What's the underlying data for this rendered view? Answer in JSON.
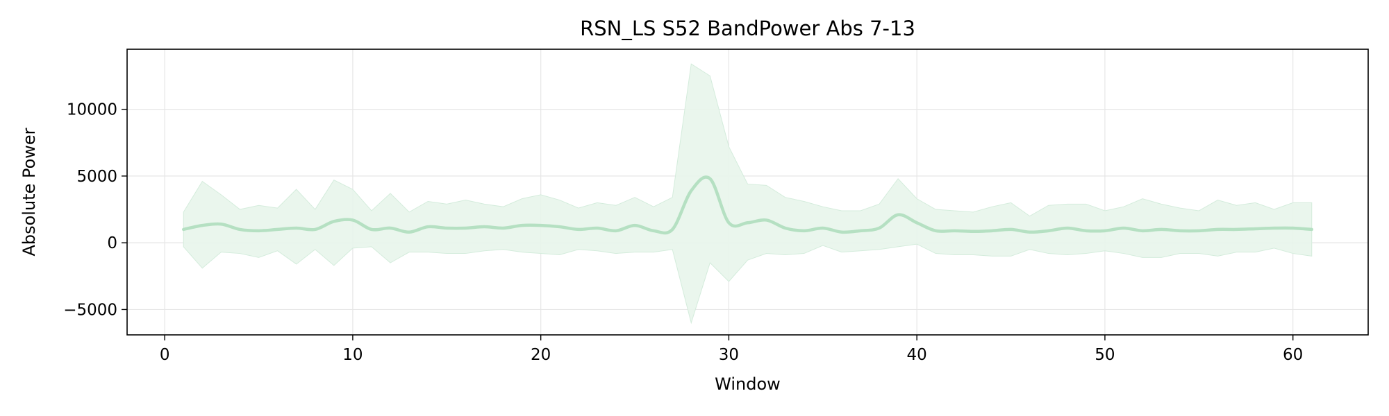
{
  "chart_data": {
    "type": "line",
    "title": "RSN_LS S52 BandPower Abs 7-13",
    "xlabel": "Window",
    "ylabel": "Absolute Power",
    "xlim": [
      -2,
      64
    ],
    "ylim": [
      -6900,
      14500
    ],
    "x_ticks": [
      0,
      10,
      20,
      30,
      40,
      50,
      60
    ],
    "x_tick_labels": [
      "0",
      "10",
      "20",
      "30",
      "40",
      "50",
      "60"
    ],
    "y_ticks": [
      -5000,
      0,
      5000,
      10000
    ],
    "y_tick_labels": [
      "−5000",
      "0",
      "5000",
      "10000"
    ],
    "grid": true,
    "legend": "none",
    "colors": {
      "line": "#b5e0c2",
      "band": "#e8f5eb",
      "band_edge": "#d4ecdc",
      "grid": "#e6e6e6"
    },
    "series": [
      {
        "x": [
          1,
          2,
          3,
          4,
          5,
          6,
          7,
          8,
          9,
          10,
          11,
          12,
          13,
          14,
          15,
          16,
          17,
          18,
          19,
          20,
          21,
          22,
          23,
          24,
          25,
          26,
          27,
          28,
          29,
          30,
          31,
          32,
          33,
          34,
          35,
          36,
          37,
          38,
          39,
          40,
          41,
          42,
          43,
          44,
          45,
          46,
          47,
          48,
          49,
          50,
          51,
          52,
          53,
          54,
          55,
          56,
          57,
          58,
          59,
          60,
          61
        ],
        "mean": [
          1000,
          1300,
          1400,
          1000,
          900,
          1000,
          1100,
          1000,
          1600,
          1700,
          1000,
          1100,
          800,
          1200,
          1100,
          1100,
          1200,
          1100,
          1300,
          1300,
          1200,
          1000,
          1100,
          900,
          1300,
          900,
          1000,
          3900,
          4800,
          1500,
          1500,
          1700,
          1100,
          900,
          1100,
          800,
          900,
          1100,
          2100,
          1500,
          900,
          900,
          850,
          900,
          1000,
          800,
          900,
          1100,
          900,
          900,
          1100,
          900,
          1000,
          900,
          900,
          1000,
          1000,
          1050,
          1100,
          1100,
          1000
        ],
        "upper": [
          2300,
          4600,
          3600,
          2500,
          2800,
          2600,
          4000,
          2500,
          4700,
          4000,
          2400,
          3700,
          2300,
          3100,
          2900,
          3200,
          2900,
          2700,
          3300,
          3600,
          3200,
          2600,
          3000,
          2800,
          3400,
          2700,
          3400,
          13400,
          12500,
          7200,
          4400,
          4300,
          3400,
          3100,
          2700,
          2400,
          2400,
          2900,
          4800,
          3300,
          2500,
          2400,
          2300,
          2700,
          3000,
          2000,
          2800,
          2900,
          2900,
          2400,
          2700,
          3300,
          2900,
          2600,
          2400,
          3200,
          2800,
          3000,
          2500,
          3000,
          3000
        ],
        "lower": [
          -300,
          -1900,
          -700,
          -800,
          -1100,
          -600,
          -1600,
          -500,
          -1700,
          -400,
          -300,
          -1500,
          -700,
          -700,
          -800,
          -800,
          -600,
          -500,
          -700,
          -800,
          -900,
          -500,
          -600,
          -800,
          -700,
          -700,
          -500,
          -6000,
          -1500,
          -2900,
          -1300,
          -800,
          -900,
          -800,
          -200,
          -700,
          -600,
          -500,
          -300,
          -100,
          -800,
          -900,
          -900,
          -1000,
          -1000,
          -500,
          -800,
          -900,
          -800,
          -600,
          -800,
          -1100,
          -1100,
          -800,
          -800,
          -1000,
          -700,
          -700,
          -400,
          -800,
          -1000
        ]
      }
    ]
  }
}
